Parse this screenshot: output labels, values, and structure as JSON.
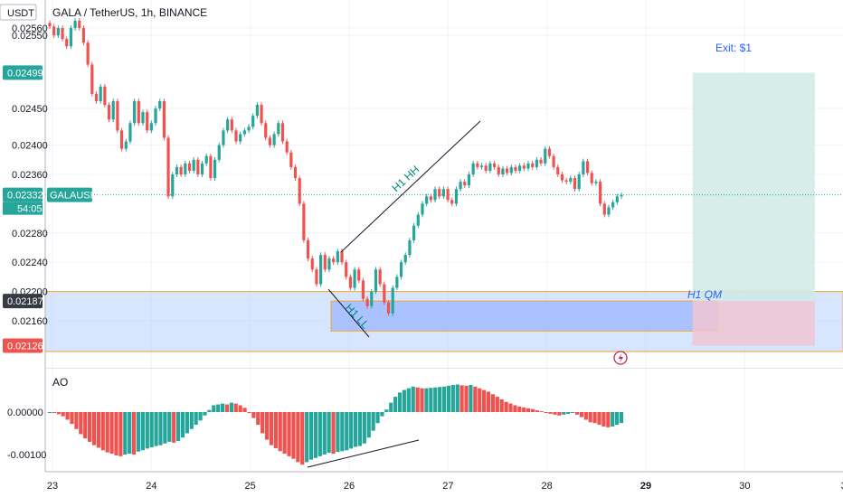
{
  "header": {
    "currency": "USDT",
    "symbol_title": "GALA / TetherUS, 1h, BINANCE"
  },
  "colors": {
    "up": "#26a69a",
    "down": "#ef5350",
    "price_line": "#26a69a",
    "zone_fill": "#bcd3ff",
    "zone_border": "#f5a623",
    "target_fill": "#cfeae6",
    "stop_fill": "#f1c6d3"
  },
  "chart_data": [
    {
      "type": "candlestick",
      "title": "GALA / TetherUS, 1h, BINANCE",
      "y_ticks": [
        "0.02560",
        "0.02550",
        "0.02450",
        "0.02400",
        "0.02360",
        "0.02280",
        "0.02240",
        "0.02200",
        "0.02160"
      ],
      "x_ticks": [
        "23",
        "24",
        "25",
        "26",
        "27",
        "28",
        "29",
        "30",
        "3"
      ],
      "ylim": [
        0.02106,
        0.0258
      ],
      "price_labels": {
        "target": "0.02499",
        "current": "0.02332",
        "current_symbol": "GALAUSDT",
        "countdown": "54:05",
        "zone_top": "0.02187",
        "stop": "0.02126"
      },
      "zones": {
        "demand_zone": {
          "from": 0.02118,
          "to": 0.022
        },
        "order_block": {
          "from": 0.02146,
          "to": 0.02187,
          "x_start": "26",
          "x_end": "29.8"
        }
      },
      "position": {
        "entry": 0.02187,
        "target": 0.02499,
        "stop": 0.02126,
        "x_start": "29.5",
        "x_end": "30.7"
      },
      "annotations": [
        "Exit: $1",
        "H1 HH",
        "H1 LL",
        "H1 QM"
      ],
      "series": [
        {
          "name": "GALAUSDT",
          "close": [
            0.02562,
            0.0255,
            0.0256,
            0.02545,
            0.02535,
            0.0256,
            0.0257,
            0.0256,
            0.0254,
            0.0251,
            0.0247,
            0.0246,
            0.0248,
            0.02455,
            0.02435,
            0.0246,
            0.0242,
            0.02395,
            0.02405,
            0.0243,
            0.0246,
            0.0243,
            0.02445,
            0.0242,
            0.0243,
            0.0245,
            0.0246,
            0.0241,
            0.0233,
            0.0236,
            0.0237,
            0.0236,
            0.02375,
            0.02365,
            0.0238,
            0.0236,
            0.02375,
            0.02385,
            0.02355,
            0.0238,
            0.024,
            0.0242,
            0.02435,
            0.0242,
            0.02405,
            0.02415,
            0.0242,
            0.02425,
            0.0244,
            0.02455,
            0.0243,
            0.0241,
            0.024,
            0.02415,
            0.0243,
            0.02405,
            0.0239,
            0.0237,
            0.02355,
            0.0232,
            0.0227,
            0.02245,
            0.0223,
            0.0221,
            0.0225,
            0.0223,
            0.02245,
            0.0224,
            0.02255,
            0.0224,
            0.0222,
            0.02205,
            0.0223,
            0.02215,
            0.0219,
            0.0218,
            0.022,
            0.0223,
            0.0221,
            0.02185,
            0.0217,
            0.02205,
            0.0222,
            0.0224,
            0.0225,
            0.0227,
            0.0229,
            0.02305,
            0.0232,
            0.0233,
            0.02325,
            0.0234,
            0.0233,
            0.0234,
            0.02325,
            0.0232,
            0.0234,
            0.0235,
            0.02345,
            0.0236,
            0.02375,
            0.0237,
            0.02372,
            0.02365,
            0.02375,
            0.0237,
            0.0236,
            0.02368,
            0.02362,
            0.0237,
            0.02365,
            0.02372,
            0.02368,
            0.02375,
            0.0237,
            0.0238,
            0.02375,
            0.02395,
            0.02385,
            0.0237,
            0.0236,
            0.02352,
            0.0235,
            0.02355,
            0.0234,
            0.0236,
            0.02378,
            0.02362,
            0.02348,
            0.0235,
            0.0232,
            0.02305,
            0.02315,
            0.02322,
            0.0233,
            0.02332
          ]
        }
      ]
    },
    {
      "type": "bar",
      "title": "AO",
      "y_ticks": [
        "0.00000",
        "-0.00100"
      ],
      "ylim": [
        -0.00145,
        0.00085
      ],
      "series": [
        {
          "name": "AO",
          "values": [
            0.0,
            -2e-05,
            -5e-05,
            -0.0001,
            -0.00018,
            -0.00028,
            -0.0004,
            -0.00052,
            -0.00062,
            -0.0007,
            -0.00078,
            -0.00084,
            -0.0009,
            -0.00095,
            -0.00098,
            -0.00102,
            -0.00104,
            -0.001,
            -0.00098,
            -0.001,
            -0.00093,
            -0.0009,
            -0.00086,
            -0.00083,
            -0.0008,
            -0.00078,
            -0.00074,
            -0.0007,
            -0.00072,
            -0.00068,
            -0.0006,
            -0.0005,
            -0.0004,
            -0.0003,
            -0.0002,
            -8e-05,
            5e-05,
            0.00016,
            0.00018,
            0.0002,
            0.00018,
            0.00022,
            0.0002,
            0.00016,
            0.0001,
            0.0,
            -0.00014,
            -0.0003,
            -0.0005,
            -0.00065,
            -0.00078,
            -0.00085,
            -0.00092,
            -0.00098,
            -0.00104,
            -0.0011,
            -0.00118,
            -0.00124,
            -0.00118,
            -0.00112,
            -0.00108,
            -0.00104,
            -0.001,
            -0.00096,
            -0.00098,
            -0.00094,
            -0.00092,
            -0.0009,
            -0.00086,
            -0.00082,
            -0.0008,
            -0.00074,
            -0.0006,
            -0.00044,
            -0.00026,
            -0.0001,
            6e-05,
            0.00022,
            0.00036,
            0.00046,
            0.00052,
            0.00056,
            0.0006,
            0.00058,
            0.00056,
            0.00056,
            0.00057,
            0.00058,
            0.00059,
            0.0006,
            0.00062,
            0.00064,
            0.00065,
            0.00063,
            0.00062,
            0.00064,
            0.0006,
            0.00056,
            0.00052,
            0.00048,
            0.00042,
            0.00036,
            0.0003,
            0.00024,
            0.0002,
            0.00016,
            0.00013,
            0.00011,
            9e-05,
            7e-05,
            4e-05,
            2e-05,
            -1e-05,
            -4e-05,
            -6e-05,
            -8e-05,
            -6e-05,
            -4e-05,
            -2e-05,
            -6e-05,
            -0.00012,
            -0.00018,
            -0.00024,
            -0.00026,
            -0.0003,
            -0.00034,
            -0.00036,
            -0.00034,
            -0.0003,
            -0.00026
          ]
        }
      ]
    }
  ]
}
